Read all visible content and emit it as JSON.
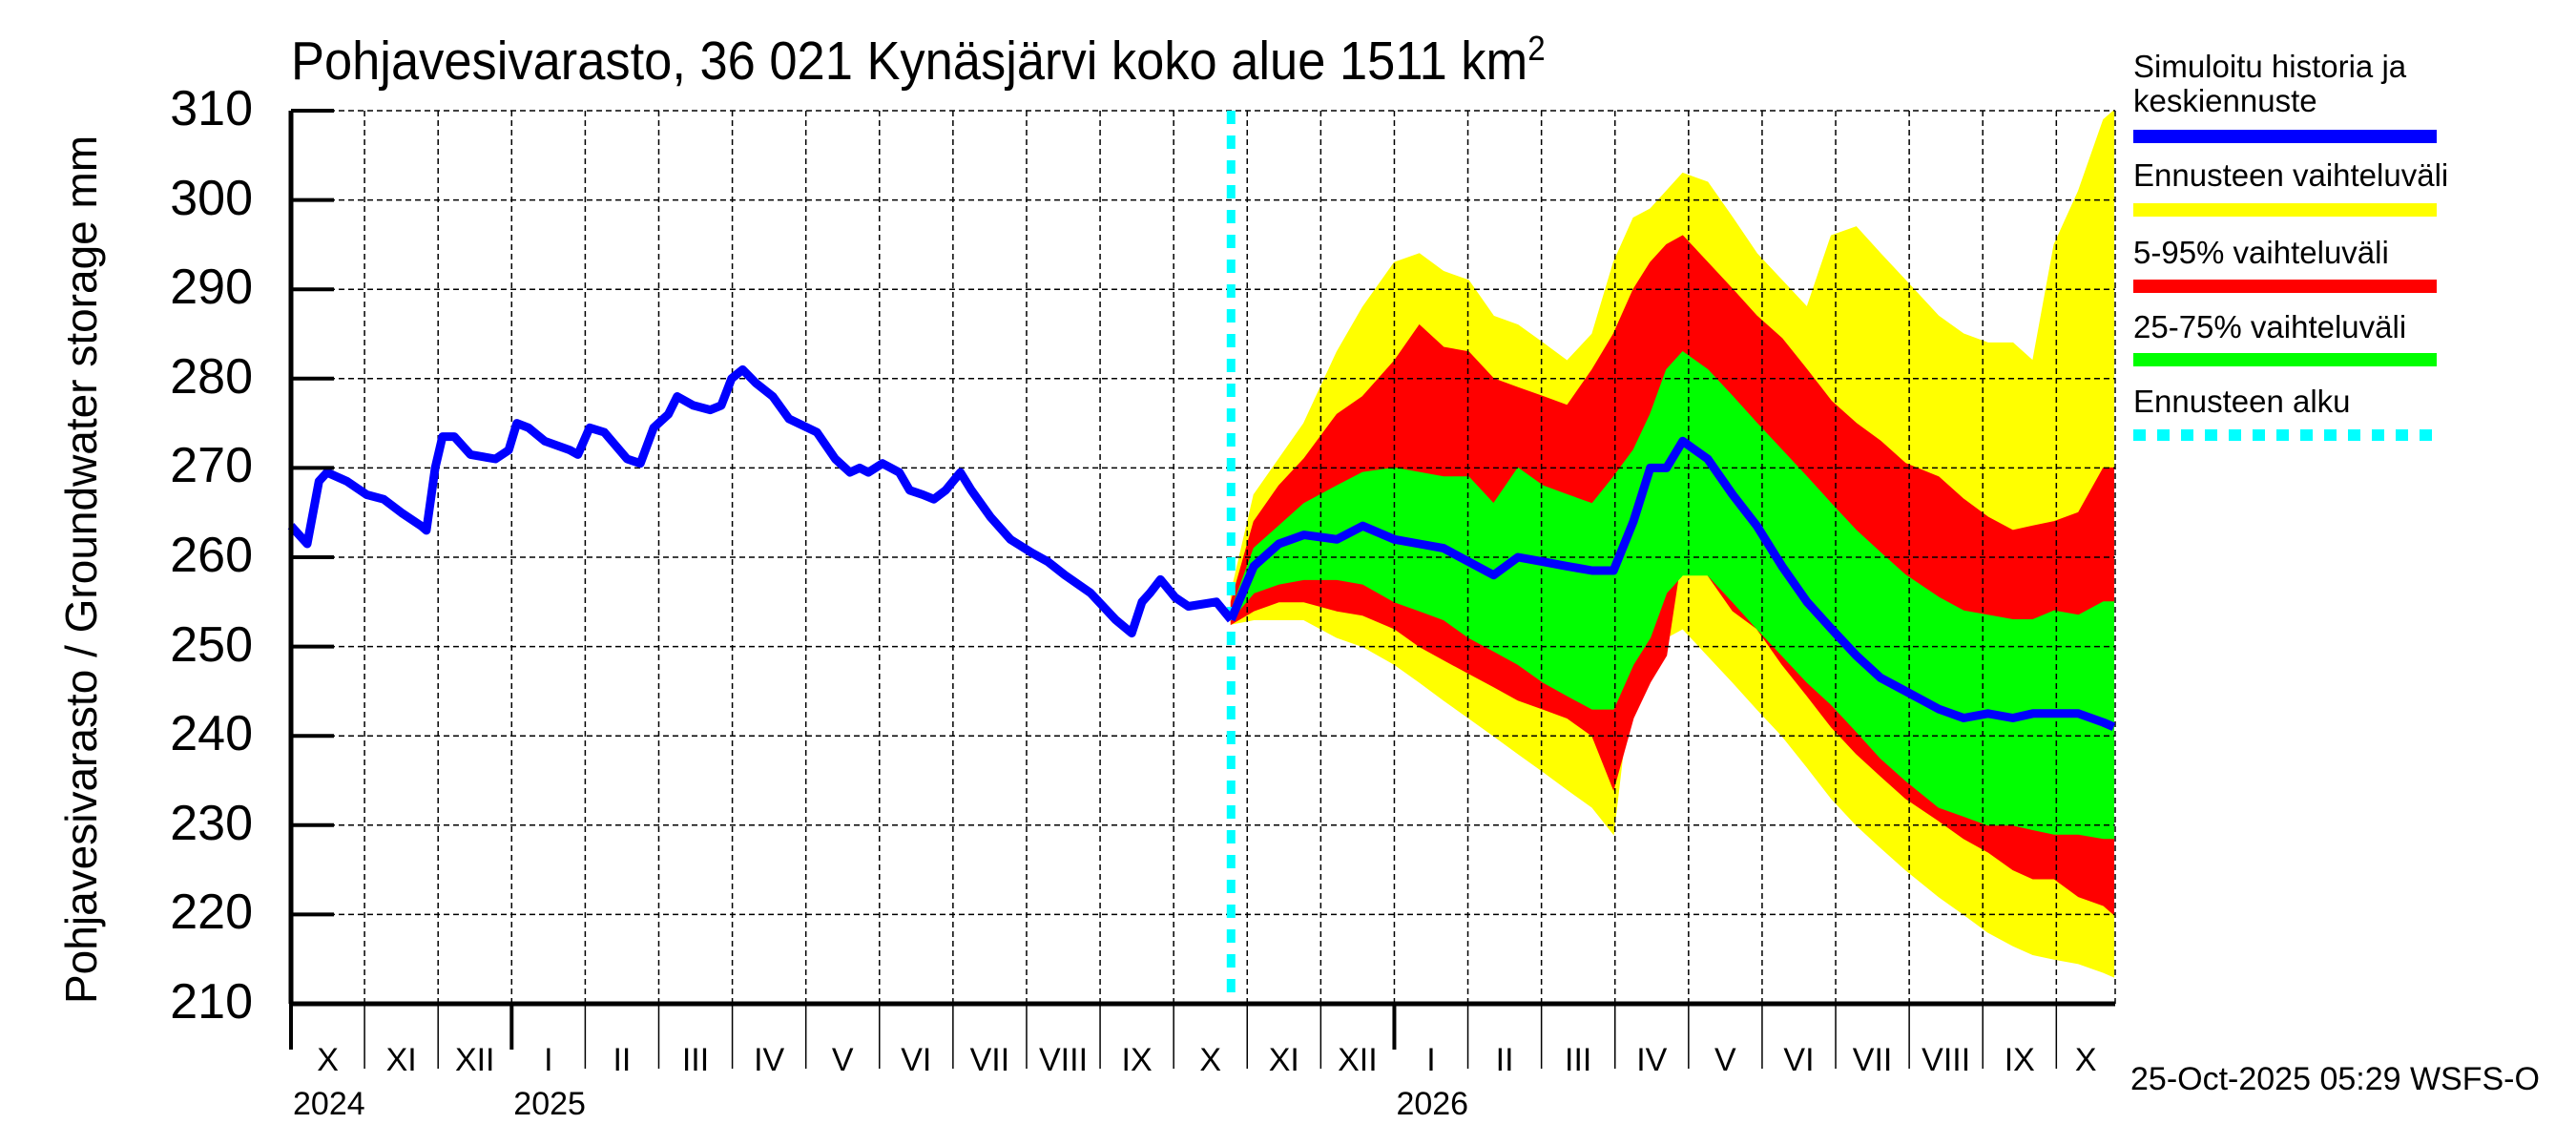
{
  "chart_data": {
    "type": "area",
    "title": "Pohjavesivarasto, 36 021 Kynäsjärvi koko alue 1511 km²",
    "title_main": "Pohjavesivarasto, 36 021 Kynäsjärvi koko alue 1511 km",
    "title_sup": "2",
    "ylabel": "Pohjavesivarasto / Groundwater storage   mm",
    "xlabel": "",
    "ylim": [
      210,
      310
    ],
    "yticks": [
      "210",
      "220",
      "230",
      "240",
      "250",
      "260",
      "270",
      "280",
      "290",
      "300",
      "310"
    ],
    "x_unit": "months since 1 Oct 2024",
    "xlim": [
      0,
      24.8
    ],
    "months": [
      {
        "label": "X",
        "start": 0
      },
      {
        "label": "XI",
        "start": 1
      },
      {
        "label": "XII",
        "start": 2
      },
      {
        "label": "I",
        "start": 3
      },
      {
        "label": "II",
        "start": 4
      },
      {
        "label": "III",
        "start": 5
      },
      {
        "label": "IV",
        "start": 6
      },
      {
        "label": "V",
        "start": 7
      },
      {
        "label": "VI",
        "start": 8
      },
      {
        "label": "VII",
        "start": 9
      },
      {
        "label": "VIII",
        "start": 10
      },
      {
        "label": "IX",
        "start": 11
      },
      {
        "label": "X",
        "start": 12
      },
      {
        "label": "XI",
        "start": 13
      },
      {
        "label": "XII",
        "start": 14
      },
      {
        "label": "I",
        "start": 15
      },
      {
        "label": "II",
        "start": 16
      },
      {
        "label": "III",
        "start": 17
      },
      {
        "label": "IV",
        "start": 18
      },
      {
        "label": "V",
        "start": 19
      },
      {
        "label": "VI",
        "start": 20
      },
      {
        "label": "VII",
        "start": 21
      },
      {
        "label": "VIII",
        "start": 22
      },
      {
        "label": "IX",
        "start": 23
      },
      {
        "label": "X",
        "start": 24
      }
    ],
    "years": [
      {
        "label": "2024",
        "start": 0
      },
      {
        "label": "2025",
        "start": 3
      },
      {
        "label": "2026",
        "start": 15
      }
    ],
    "forecast_start": 12.78,
    "legend": [
      {
        "label": "Simuloitu historia ja keskiennuste",
        "label_line1": "Simuloitu historia ja",
        "label_line2": "keskiennuste",
        "color": "#0000ff",
        "style": "solid"
      },
      {
        "label": "Ennusteen vaihteluväli",
        "color": "#ffff00",
        "style": "solid"
      },
      {
        "label": "5-95% vaihteluväli",
        "color": "#ff0000",
        "style": "solid"
      },
      {
        "label": "25-75% vaihteluväli",
        "color": "#00ff00",
        "style": "solid"
      },
      {
        "label": "Ennusteen alku",
        "color": "#00ffff",
        "style": "dashed"
      }
    ],
    "legend_position": "right",
    "grid": true,
    "history": {
      "name": "Simuloitu historia ja keskiennuste",
      "x": [
        0,
        0.22,
        0.38,
        0.49,
        0.76,
        1.03,
        1.26,
        1.5,
        1.77,
        1.84,
        1.96,
        2.06,
        2.22,
        2.44,
        2.78,
        2.96,
        3.07,
        3.23,
        3.45,
        3.79,
        3.9,
        4.06,
        4.26,
        4.57,
        4.75,
        4.93,
        5.13,
        5.25,
        5.47,
        5.7,
        5.85,
        5.99,
        6.14,
        6.32,
        6.55,
        6.77,
        7.15,
        7.4,
        7.6,
        7.73,
        7.85,
        8.04,
        8.27,
        8.41,
        8.59,
        8.74,
        8.9,
        9.1,
        9.25,
        9.51,
        9.78,
        10.07,
        10.29,
        10.52,
        10.87,
        11.21,
        11.43,
        11.57,
        11.68,
        11.82,
        12.02,
        12.2,
        12.58,
        12.78
      ],
      "values": [
        263.5,
        261.5,
        268.5,
        269.5,
        268.5,
        267,
        266.5,
        265,
        263.5,
        263,
        270,
        273.5,
        273.5,
        271.5,
        271,
        272,
        275,
        274.5,
        273,
        272,
        271.5,
        274.5,
        274,
        271,
        270.5,
        274.5,
        276,
        278,
        277,
        276.5,
        277,
        280,
        281,
        279.5,
        278,
        275.5,
        274,
        271,
        269.5,
        270,
        269.5,
        270.5,
        269.5,
        267.5,
        267,
        266.5,
        267.5,
        269.5,
        267.5,
        264.5,
        262,
        260.5,
        259.5,
        258,
        256,
        253,
        251.5,
        255,
        256,
        257.5,
        255.5,
        254.5,
        255,
        253
      ]
    },
    "forecast": {
      "x": [
        12.78,
        13.09,
        13.43,
        13.77,
        14.22,
        14.57,
        15.0,
        15.34,
        15.67,
        16.01,
        16.35,
        16.68,
        17.02,
        17.35,
        17.69,
        17.98,
        18.25,
        18.48,
        18.7,
        18.92,
        19.26,
        19.6,
        19.93,
        20.27,
        20.61,
        20.94,
        21.28,
        21.61,
        21.95,
        22.4,
        22.74,
        23.07,
        23.41,
        23.68,
        23.97,
        24.3,
        24.64,
        24.78
      ],
      "series": [
        {
          "name": "Keskiennuste",
          "values": [
            253,
            259,
            261.5,
            262.5,
            262,
            263.5,
            262,
            261.5,
            261,
            259.5,
            258,
            260,
            259.5,
            259,
            258.5,
            258.5,
            264,
            270,
            270,
            273,
            271,
            267,
            263.5,
            259,
            255,
            252,
            249,
            246.5,
            245,
            243,
            242,
            242.5,
            242,
            242.5,
            242.5,
            242.5,
            241.5,
            241
          ]
        },
        {
          "name": "25%",
          "values": [
            253,
            256,
            257,
            257.5,
            257.5,
            257,
            255,
            254,
            253,
            251,
            249.5,
            248,
            246,
            244.5,
            243,
            243,
            248,
            251,
            256,
            258,
            258,
            255,
            252,
            249,
            246,
            243.5,
            240.5,
            237.5,
            235,
            232,
            231,
            230,
            230,
            229.5,
            229,
            229,
            228.5,
            228.5
          ]
        },
        {
          "name": "75%",
          "values": [
            254,
            261,
            263.5,
            266,
            268,
            269.5,
            270,
            269.5,
            269,
            269,
            266,
            270,
            268,
            267,
            266,
            269,
            272,
            276,
            281,
            283,
            281,
            278,
            275,
            272,
            269,
            266,
            263,
            260.5,
            258,
            255.5,
            254,
            253.5,
            253,
            253,
            254,
            253.5,
            255,
            255
          ]
        },
        {
          "name": "5%",
          "values": [
            252.5,
            254,
            255,
            255,
            254,
            253.5,
            252,
            250,
            248.5,
            247,
            245.5,
            244,
            243,
            242,
            240,
            234,
            242,
            246,
            249,
            261,
            258,
            254,
            252,
            248,
            244.5,
            241,
            238,
            235.5,
            233,
            230.5,
            228.5,
            227,
            225,
            224,
            224,
            222,
            221,
            220
          ]
        },
        {
          "name": "95%",
          "values": [
            255,
            264,
            268,
            271,
            276,
            278,
            282,
            286,
            283.5,
            283,
            280,
            279,
            278,
            277,
            281,
            285,
            290,
            293,
            295,
            296,
            293,
            290,
            287,
            284.5,
            281,
            277.5,
            275,
            273,
            270.5,
            269,
            266.5,
            264.5,
            263,
            263.5,
            264,
            265,
            270,
            270
          ]
        },
        {
          "name": "min",
          "values": [
            252.5,
            253,
            253,
            253,
            251,
            250,
            248,
            246,
            244,
            242,
            240,
            238,
            236,
            234,
            232,
            229,
            248,
            250,
            251,
            252,
            249,
            246,
            243,
            240,
            236.5,
            233,
            230,
            227.5,
            225,
            222,
            220,
            218,
            216.5,
            215.5,
            215,
            214.5,
            213.5,
            213
          ]
        },
        {
          "name": "max",
          "values": [
            256,
            267,
            271,
            275,
            283,
            288,
            293,
            294,
            292,
            291,
            287,
            286,
            284,
            282,
            285,
            293,
            298,
            299,
            301,
            303,
            302,
            298,
            294,
            291,
            288,
            296,
            297,
            294,
            291,
            287,
            285,
            284,
            284,
            282,
            295,
            301,
            309,
            310
          ]
        }
      ]
    },
    "timestamp": "25-Oct-2025 05:29 WSFS-O"
  }
}
